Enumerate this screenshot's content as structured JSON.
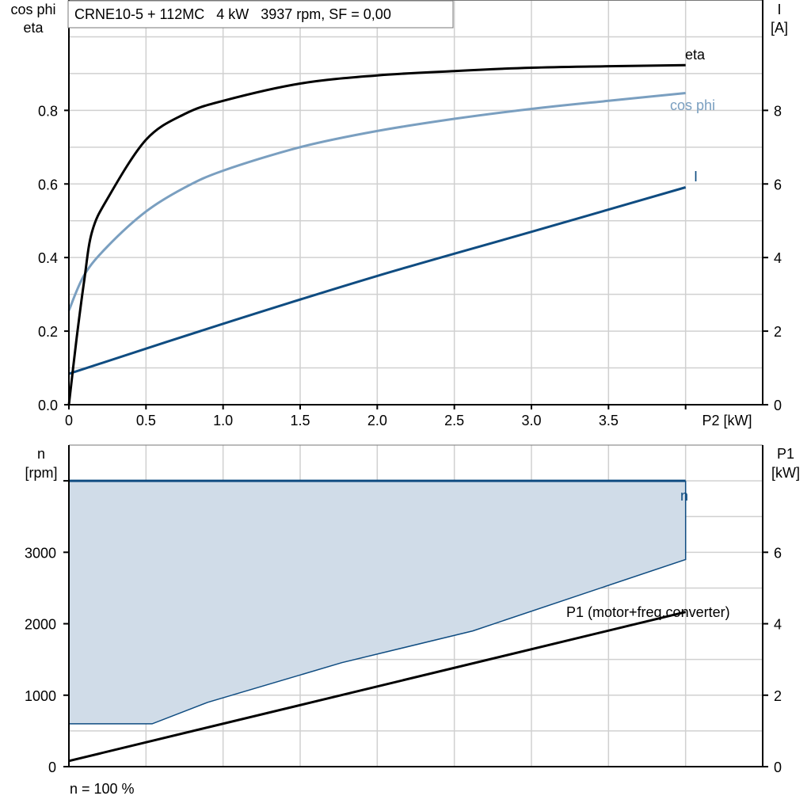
{
  "chart_data": [
    {
      "type": "line",
      "title": "CRNE10-5 + 112MC   4 kW   3937 rpm, SF = 0,00",
      "xlabel": "P2 [kW]",
      "ylabel_left": [
        "cos phi",
        "eta"
      ],
      "ylabel_right": [
        "I",
        "[A]"
      ],
      "xlim": [
        0,
        4.5
      ],
      "ylim_left": [
        0,
        1.1
      ],
      "ylim_right": [
        0,
        11
      ],
      "grid": true,
      "x_ticks": [
        "0",
        "0.5",
        "1.0",
        "1.5",
        "2.0",
        "2.5",
        "3.0",
        "3.5"
      ],
      "x_tick_values": [
        0,
        0.5,
        1.0,
        1.5,
        2.0,
        2.5,
        3.0,
        3.5
      ],
      "y_ticks_left": [
        "0.0",
        "0.2",
        "0.4",
        "0.6",
        "0.8"
      ],
      "y_tick_values_left": [
        0,
        0.2,
        0.4,
        0.6,
        0.8
      ],
      "y_ticks_right": [
        "0",
        "2",
        "4",
        "6",
        "8"
      ],
      "y_tick_values_right": [
        0,
        2,
        4,
        6,
        8
      ],
      "series": [
        {
          "name": "eta",
          "axis": "left",
          "color": "#000000",
          "x": [
            0,
            0.05,
            0.1,
            0.15,
            0.25,
            0.5,
            0.75,
            1.0,
            1.5,
            2.0,
            2.5,
            3.0,
            3.5,
            4.0
          ],
          "y": [
            0,
            0.18,
            0.34,
            0.47,
            0.56,
            0.72,
            0.79,
            0.826,
            0.873,
            0.895,
            0.907,
            0.916,
            0.92,
            0.923
          ]
        },
        {
          "name": "cos phi",
          "axis": "left",
          "color": "#7a9fc0",
          "x": [
            0,
            0.1,
            0.25,
            0.5,
            0.75,
            1.0,
            1.5,
            2.0,
            2.5,
            3.0,
            3.5,
            4.0
          ],
          "y": [
            0.256,
            0.353,
            0.43,
            0.525,
            0.59,
            0.636,
            0.7,
            0.744,
            0.777,
            0.804,
            0.826,
            0.847
          ]
        },
        {
          "name": "I",
          "axis": "right",
          "color": "#0f4c81",
          "x": [
            0,
            1.0,
            2.0,
            3.0,
            4.0
          ],
          "y": [
            0.84,
            2.2,
            3.5,
            4.7,
            5.91
          ]
        }
      ]
    },
    {
      "type": "area",
      "xlim": [
        0,
        4.5
      ],
      "ylabel_left": [
        "n",
        "[rpm]"
      ],
      "ylabel_right": [
        "P1",
        "[kW]"
      ],
      "ylim_left": [
        0,
        4500
      ],
      "ylim_right": [
        0,
        9
      ],
      "grid": true,
      "y_ticks_left": [
        "0",
        "1000",
        "2000",
        "3000"
      ],
      "y_tick_values_left": [
        0,
        1000,
        2000,
        3000
      ],
      "y_ticks_right": [
        "0",
        "2",
        "4",
        "6"
      ],
      "y_tick_values_right": [
        0,
        2,
        4,
        6
      ],
      "footer": "n = 100 %",
      "series": [
        {
          "name": "n",
          "axis": "left",
          "color": "#0f4c81",
          "fill": "#d0dce8",
          "upper": {
            "x": [
              0,
              4.0
            ],
            "y": [
              4000,
              4000
            ]
          },
          "lower": {
            "x": [
              0,
              0.54,
              0.9,
              1.77,
              2.62,
              4.0
            ],
            "y": [
              600,
              600,
              900,
              1455,
              1900,
              2900
            ]
          }
        },
        {
          "name": "P1 (motor+freq.converter)",
          "axis": "right",
          "color": "#000000",
          "x": [
            0,
            4.0
          ],
          "y": [
            0.16,
            4.33
          ]
        }
      ]
    }
  ]
}
